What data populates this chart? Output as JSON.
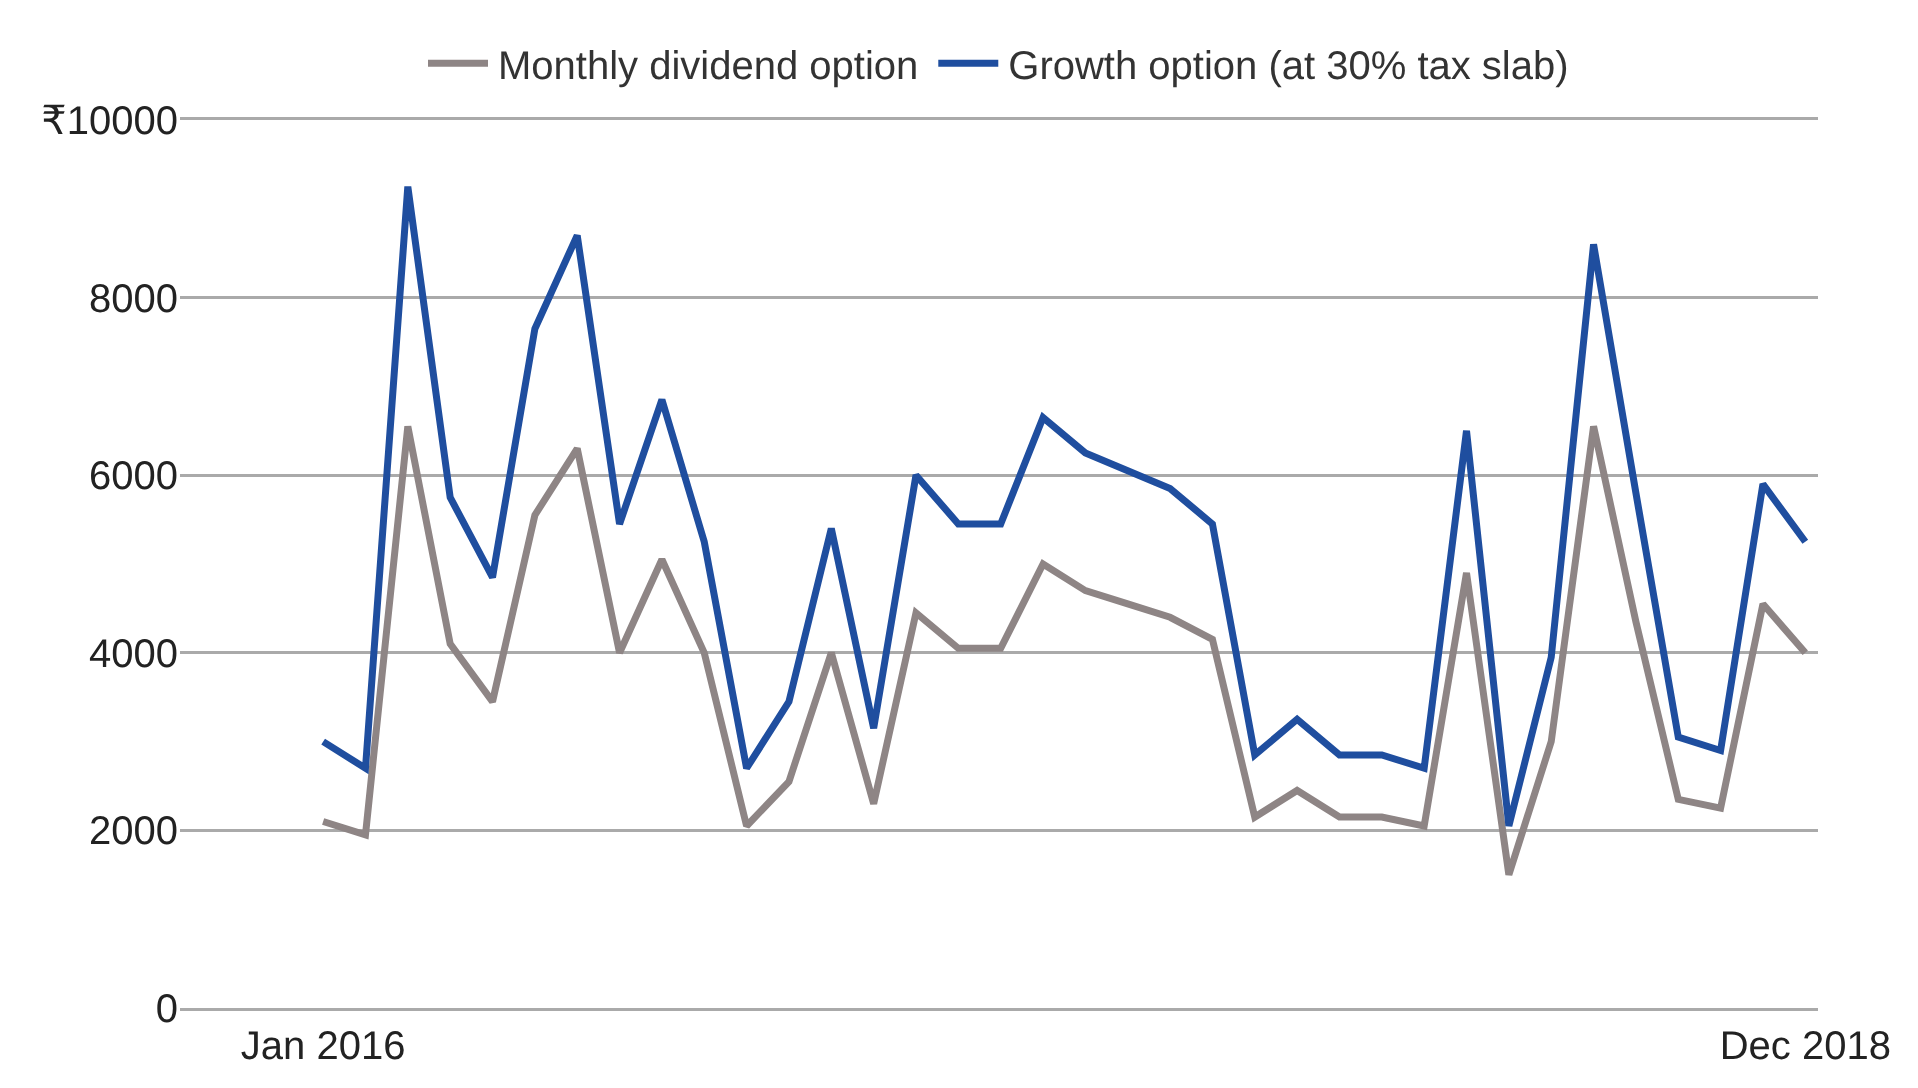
{
  "chart_data": {
    "type": "line",
    "categories": [
      "Jan 2016",
      null,
      null,
      null,
      null,
      null,
      null,
      null,
      null,
      null,
      null,
      null,
      null,
      null,
      null,
      null,
      null,
      null,
      null,
      null,
      null,
      null,
      null,
      null,
      null,
      null,
      null,
      null,
      null,
      null,
      null,
      null,
      null,
      null,
      null,
      "Dec 2018"
    ],
    "series": [
      {
        "name": "Monthly dividend option",
        "color": "#8e8585",
        "values": [
          2100,
          1950,
          6550,
          4100,
          3450,
          5550,
          6300,
          4000,
          5050,
          4000,
          2050,
          2550,
          4000,
          2300,
          4450,
          4050,
          4050,
          5000,
          4700,
          4550,
          4400,
          4150,
          2150,
          2450,
          2150,
          2150,
          2050,
          4900,
          1500,
          3000,
          6550,
          4350,
          2350,
          2250,
          4550,
          4000
        ]
      },
      {
        "name": "Growth option (at 30% tax slab)",
        "color": "#1f4e9f",
        "values": [
          3000,
          2700,
          9250,
          5750,
          4850,
          7650,
          8700,
          5450,
          6850,
          5250,
          2700,
          3450,
          5400,
          3150,
          6000,
          5450,
          5450,
          6650,
          6250,
          6050,
          5850,
          5450,
          2850,
          3250,
          2850,
          2850,
          2700,
          6500,
          2050,
          3950,
          8600,
          5800,
          3050,
          2900,
          5900,
          5250
        ]
      }
    ],
    "ylim": [
      0,
      10000
    ],
    "yticks": [
      0,
      2000,
      4000,
      6000,
      8000,
      {
        "value": 10000,
        "label": "₹10000"
      }
    ],
    "grid": "y",
    "legend": "top",
    "marker": "none",
    "line_style": "solid"
  }
}
